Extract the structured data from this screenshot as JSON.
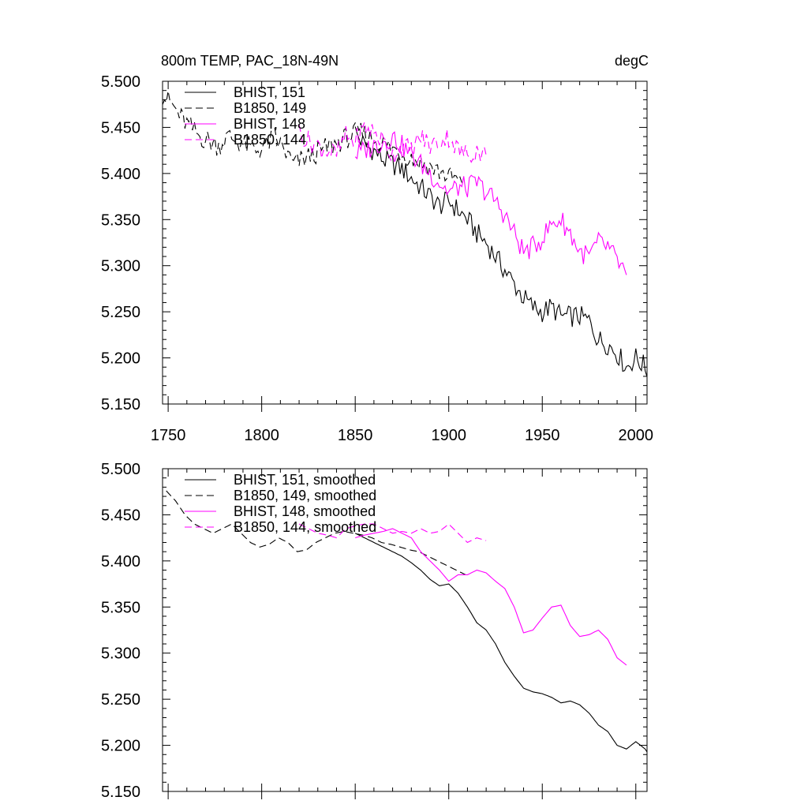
{
  "chart_data": [
    {
      "type": "line",
      "title": "800m TEMP, PAC_18N-49N",
      "units": "degC",
      "xlim": [
        1747,
        2006
      ],
      "ylim": [
        5.15,
        5.5
      ],
      "yticks": [
        "5.500",
        "5.450",
        "5.400",
        "5.350",
        "5.300",
        "5.250",
        "5.200",
        "5.150"
      ],
      "xticks": [
        "1750",
        "1800",
        "1850",
        "1900",
        "1950",
        "2000"
      ],
      "grid": false,
      "legend_position": "top-left",
      "series": [
        {
          "name": "BHIST, 151",
          "color": "#000000",
          "dash": "solid",
          "start": 1850,
          "step": 5,
          "values": [
            5.445,
            5.43,
            5.425,
            5.415,
            5.41,
            5.405,
            5.395,
            5.385,
            5.375,
            5.365,
            5.37,
            5.36,
            5.35,
            5.335,
            5.325,
            5.31,
            5.295,
            5.28,
            5.265,
            5.255,
            5.25,
            5.255,
            5.245,
            5.245,
            5.245,
            5.24,
            5.22,
            5.215,
            5.205,
            5.19,
            5.2,
            5.19,
            5.175
          ]
        },
        {
          "name": "B1850, 149",
          "color": "#000000",
          "dash": "dash",
          "start": 1747,
          "step": 5,
          "values": [
            5.485,
            5.475,
            5.46,
            5.45,
            5.44,
            5.435,
            5.43,
            5.44,
            5.435,
            5.43,
            5.425,
            5.43,
            5.44,
            5.425,
            5.41,
            5.415,
            5.42,
            5.425,
            5.43,
            5.435,
            5.44,
            5.445,
            5.44,
            5.435,
            5.43,
            5.425,
            5.42,
            5.415,
            5.41,
            5.405,
            5.4,
            5.395,
            5.39
          ]
        },
        {
          "name": "BHIST, 148",
          "color": "#ff00ff",
          "dash": "solid",
          "start": 1850,
          "step": 5,
          "values": [
            5.42,
            5.425,
            5.43,
            5.435,
            5.44,
            5.43,
            5.42,
            5.41,
            5.4,
            5.39,
            5.38,
            5.385,
            5.385,
            5.39,
            5.38,
            5.37,
            5.355,
            5.335,
            5.315,
            5.32,
            5.33,
            5.345,
            5.35,
            5.335,
            5.315,
            5.31,
            5.325,
            5.32,
            5.305,
            5.29
          ]
        },
        {
          "name": "B1850, 144",
          "color": "#ff00ff",
          "dash": "dash",
          "start": 1820,
          "step": 5,
          "values": [
            5.445,
            5.435,
            5.43,
            5.425,
            5.42,
            5.44,
            5.435,
            5.45,
            5.445,
            5.435,
            5.42,
            5.43,
            5.425,
            5.44,
            5.43,
            5.435,
            5.44,
            5.425,
            5.42,
            5.425,
            5.42
          ]
        }
      ]
    },
    {
      "type": "line",
      "xlim": [
        1747,
        2006
      ],
      "ylim": [
        5.15,
        5.5
      ],
      "yticks": [
        "5.500",
        "5.450",
        "5.400",
        "5.350",
        "5.300",
        "5.250",
        "5.200",
        "5.150"
      ],
      "grid": false,
      "legend_position": "top-left",
      "series": [
        {
          "name": "BHIST, 151, smoothed",
          "color": "#000000",
          "dash": "solid",
          "start": 1850,
          "step": 5,
          "values": [
            5.43,
            5.425,
            5.42,
            5.415,
            5.41,
            5.405,
            5.398,
            5.39,
            5.38,
            5.373,
            5.375,
            5.365,
            5.35,
            5.333,
            5.325,
            5.31,
            5.29,
            5.275,
            5.262,
            5.258,
            5.256,
            5.252,
            5.246,
            5.248,
            5.244,
            5.235,
            5.222,
            5.215,
            5.2,
            5.196,
            5.204,
            5.196,
            5.18
          ]
        },
        {
          "name": "B1850, 149, smoothed",
          "color": "#000000",
          "dash": "dash",
          "start": 1749,
          "step": 5,
          "values": [
            5.476,
            5.465,
            5.45,
            5.44,
            5.435,
            5.43,
            5.435,
            5.44,
            5.43,
            5.42,
            5.415,
            5.418,
            5.425,
            5.42,
            5.41,
            5.412,
            5.42,
            5.425,
            5.43,
            5.432,
            5.43,
            5.428,
            5.425,
            5.42,
            5.418,
            5.415,
            5.412,
            5.41,
            5.405,
            5.4,
            5.395,
            5.39,
            5.385
          ]
        },
        {
          "name": "BHIST, 148, smoothed",
          "color": "#ff00ff",
          "dash": "solid",
          "start": 1850,
          "step": 5,
          "values": [
            5.425,
            5.428,
            5.43,
            5.432,
            5.435,
            5.43,
            5.425,
            5.41,
            5.4,
            5.39,
            5.378,
            5.385,
            5.385,
            5.39,
            5.387,
            5.378,
            5.37,
            5.35,
            5.322,
            5.325,
            5.338,
            5.35,
            5.352,
            5.33,
            5.318,
            5.32,
            5.325,
            5.315,
            5.295,
            5.287
          ]
        },
        {
          "name": "B1850, 144, smoothed",
          "color": "#ff00ff",
          "dash": "dash",
          "start": 1820,
          "step": 5,
          "values": [
            5.44,
            5.435,
            5.43,
            5.428,
            5.425,
            5.435,
            5.438,
            5.44,
            5.44,
            5.435,
            5.43,
            5.432,
            5.43,
            5.435,
            5.43,
            5.432,
            5.44,
            5.43,
            5.42,
            5.425,
            5.422
          ]
        }
      ]
    }
  ]
}
